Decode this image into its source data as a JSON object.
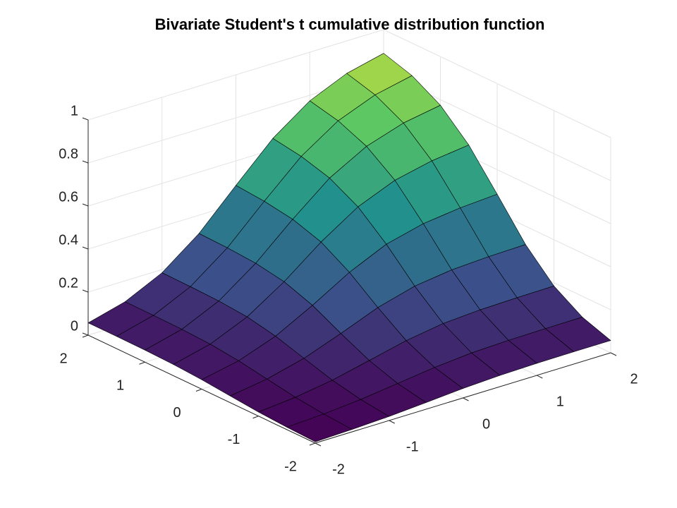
{
  "chart_data": {
    "type": "surface",
    "title": "Bivariate Student's t cumulative distribution function",
    "x": [
      -2,
      -1.5,
      -1,
      -0.5,
      0,
      0.5,
      1,
      1.5,
      2
    ],
    "y": [
      -2,
      -1.5,
      -1,
      -0.5,
      0,
      0.5,
      1,
      1.5,
      2
    ],
    "z": [
      [
        0.006,
        0.011,
        0.019,
        0.031,
        0.044,
        0.052,
        0.056,
        0.057,
        0.057
      ],
      [
        0.011,
        0.02,
        0.035,
        0.057,
        0.079,
        0.094,
        0.1,
        0.102,
        0.103
      ],
      [
        0.019,
        0.035,
        0.062,
        0.101,
        0.141,
        0.168,
        0.179,
        0.183,
        0.185
      ],
      [
        0.031,
        0.057,
        0.101,
        0.164,
        0.232,
        0.279,
        0.302,
        0.311,
        0.315
      ],
      [
        0.044,
        0.079,
        0.141,
        0.232,
        0.333,
        0.411,
        0.454,
        0.475,
        0.486
      ],
      [
        0.052,
        0.094,
        0.168,
        0.279,
        0.411,
        0.522,
        0.593,
        0.631,
        0.652
      ],
      [
        0.056,
        0.1,
        0.179,
        0.302,
        0.454,
        0.593,
        0.688,
        0.744,
        0.774
      ],
      [
        0.057,
        0.102,
        0.183,
        0.311,
        0.475,
        0.631,
        0.744,
        0.812,
        0.849
      ],
      [
        0.057,
        0.103,
        0.185,
        0.315,
        0.486,
        0.652,
        0.774,
        0.849,
        0.89
      ]
    ],
    "xlim": [
      -2,
      2
    ],
    "ylim": [
      -2,
      2
    ],
    "zlim": [
      0,
      1
    ],
    "xticks": [
      -2,
      -1,
      0,
      1,
      2
    ],
    "yticks": [
      -2,
      -1,
      0,
      1,
      2
    ],
    "zticks": [
      0,
      0.2,
      0.4,
      0.6,
      0.8,
      1
    ],
    "grid": true,
    "colormap": [
      "#440154",
      "#3b528b",
      "#21918c",
      "#5ec962",
      "#fde725"
    ]
  }
}
